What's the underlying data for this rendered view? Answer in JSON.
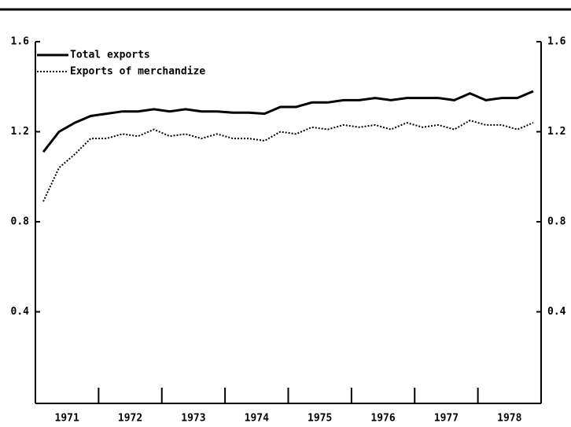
{
  "chart_data": {
    "type": "line",
    "x": [
      1971.125,
      1971.375,
      1971.625,
      1971.875,
      1972.125,
      1972.375,
      1972.625,
      1972.875,
      1973.125,
      1973.375,
      1973.625,
      1973.875,
      1974.125,
      1974.375,
      1974.625,
      1974.875,
      1975.125,
      1975.375,
      1975.625,
      1975.875,
      1976.125,
      1976.375,
      1976.625,
      1976.875,
      1977.125,
      1977.375,
      1977.625,
      1977.875,
      1978.125,
      1978.375,
      1978.625,
      1978.875
    ],
    "series": [
      {
        "name": "Total exports",
        "color": "#000000",
        "style": "solid",
        "values": [
          1.11,
          1.2,
          1.24,
          1.27,
          1.28,
          1.29,
          1.29,
          1.3,
          1.29,
          1.3,
          1.29,
          1.29,
          1.285,
          1.285,
          1.28,
          1.31,
          1.31,
          1.33,
          1.33,
          1.34,
          1.34,
          1.35,
          1.34,
          1.35,
          1.35,
          1.35,
          1.34,
          1.37,
          1.34,
          1.35,
          1.35,
          1.38
        ]
      },
      {
        "name": "Exports of merchandize",
        "color": "#000000",
        "style": "dotted",
        "values": [
          0.89,
          1.04,
          1.1,
          1.17,
          1.17,
          1.19,
          1.18,
          1.21,
          1.18,
          1.19,
          1.17,
          1.19,
          1.17,
          1.17,
          1.16,
          1.2,
          1.19,
          1.22,
          1.21,
          1.23,
          1.22,
          1.23,
          1.21,
          1.24,
          1.22,
          1.23,
          1.21,
          1.25,
          1.23,
          1.23,
          1.21,
          1.24
        ]
      }
    ],
    "xlim": [
      1971,
      1979
    ],
    "xticks": [
      {
        "value": 1971.5,
        "label": "1971"
      },
      {
        "value": 1972.5,
        "label": "1972"
      },
      {
        "value": 1973.5,
        "label": "1973"
      },
      {
        "value": 1974.5,
        "label": "1974"
      },
      {
        "value": 1975.5,
        "label": "1975"
      },
      {
        "value": 1976.5,
        "label": "1976"
      },
      {
        "value": 1977.5,
        "label": "1977"
      },
      {
        "value": 1978.5,
        "label": "1978"
      }
    ],
    "ylim": [
      0,
      1.6
    ],
    "yticks": [
      0.4,
      0.8,
      1.2,
      1.6
    ],
    "legend": "upper left"
  }
}
